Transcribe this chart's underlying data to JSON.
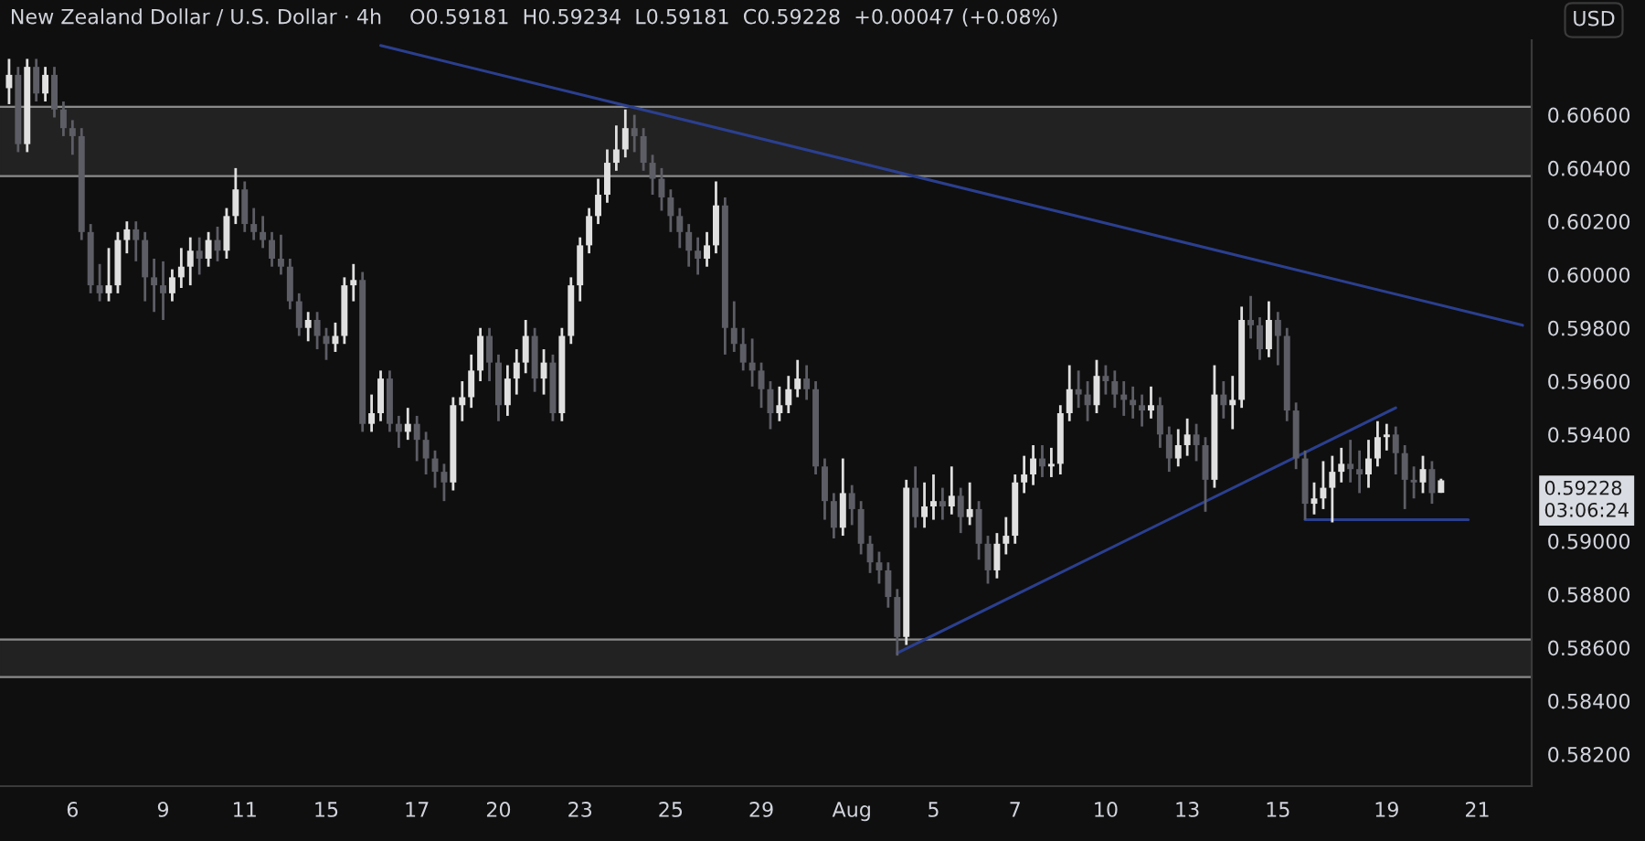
{
  "chart_data": {
    "type": "candlestick",
    "title": "New Zealand Dollar / U.S. Dollar · 4h",
    "subtitle": "O0.59181  H0.59234  L0.59181  C0.59228  +0.00047 (+0.08%)",
    "ylabel": "USD",
    "categories": [
      null,
      null,
      null,
      null,
      null,
      null,
      null,
      "6",
      null,
      null,
      null,
      null,
      null,
      null,
      null,
      null,
      null,
      "9",
      null,
      null,
      null,
      null,
      null,
      null,
      null,
      null,
      "11",
      null,
      null,
      null,
      null,
      null,
      null,
      null,
      null,
      "15",
      null,
      null,
      null,
      null,
      null,
      null,
      null,
      null,
      null,
      "17",
      null,
      null,
      null,
      null,
      null,
      null,
      null,
      null,
      "20",
      null,
      null,
      null,
      null,
      null,
      null,
      null,
      null,
      "23",
      null,
      null,
      null,
      null,
      null,
      null,
      null,
      null,
      null,
      "25",
      null,
      null,
      null,
      null,
      null,
      null,
      null,
      null,
      null,
      "29",
      null,
      null,
      null,
      null,
      null,
      null,
      null,
      null,
      null,
      "Aug",
      null,
      null,
      null,
      null,
      null,
      null,
      null,
      null,
      "5",
      null,
      null,
      null,
      null,
      null,
      null,
      null,
      null,
      "7",
      null,
      null,
      null,
      null,
      null,
      null,
      null,
      null,
      null,
      "10",
      null,
      null,
      null,
      null,
      null,
      null,
      null,
      null,
      "13",
      null,
      null,
      null,
      null,
      null,
      null,
      null,
      null,
      null,
      "15",
      null,
      null,
      null,
      null,
      null,
      null,
      null,
      null,
      null,
      null,
      null,
      "19",
      null,
      null,
      null,
      null,
      null,
      null,
      null,
      null,
      null,
      "21",
      null,
      null,
      null,
      null,
      null
    ],
    "ohlc": [
      [
        0.607,
        0.6081,
        0.6064,
        0.6075
      ],
      [
        0.6075,
        0.6078,
        0.6046,
        0.6049
      ],
      [
        0.6049,
        0.6081,
        0.6046,
        0.6078
      ],
      [
        0.6078,
        0.6081,
        0.6065,
        0.6068
      ],
      [
        0.6068,
        0.6078,
        0.6065,
        0.6075
      ],
      [
        0.6075,
        0.6078,
        0.6059,
        0.6062
      ],
      [
        0.6062,
        0.6065,
        0.6052,
        0.6055
      ],
      [
        0.6055,
        0.6058,
        0.6045,
        0.6052
      ],
      [
        0.6052,
        0.6055,
        0.6013,
        0.6016
      ],
      [
        0.6016,
        0.6019,
        0.5993,
        0.5996
      ],
      [
        0.5996,
        0.6004,
        0.599,
        0.5993
      ],
      [
        0.5993,
        0.601,
        0.599,
        0.5996
      ],
      [
        0.5996,
        0.6016,
        0.5993,
        0.6013
      ],
      [
        0.6013,
        0.602,
        0.6008,
        0.6017
      ],
      [
        0.6017,
        0.602,
        0.6005,
        0.6013
      ],
      [
        0.6013,
        0.6016,
        0.599,
        0.5999
      ],
      [
        0.5999,
        0.6006,
        0.5986,
        0.5996
      ],
      [
        0.5996,
        0.6005,
        0.5983,
        0.5993
      ],
      [
        0.5993,
        0.6002,
        0.599,
        0.5999
      ],
      [
        0.5999,
        0.601,
        0.5995,
        0.6003
      ],
      [
        0.6003,
        0.6014,
        0.5996,
        0.6009
      ],
      [
        0.6009,
        0.6014,
        0.6,
        0.6006
      ],
      [
        0.6006,
        0.6016,
        0.6003,
        0.6013
      ],
      [
        0.6013,
        0.6018,
        0.6005,
        0.6009
      ],
      [
        0.6009,
        0.6025,
        0.6006,
        0.6022
      ],
      [
        0.6022,
        0.604,
        0.6019,
        0.6032
      ],
      [
        0.6032,
        0.6035,
        0.6016,
        0.6019
      ],
      [
        0.6019,
        0.6025,
        0.6013,
        0.6016
      ],
      [
        0.6016,
        0.6022,
        0.601,
        0.6013
      ],
      [
        0.6013,
        0.6016,
        0.6003,
        0.6006
      ],
      [
        0.6006,
        0.6015,
        0.6,
        0.6003
      ],
      [
        0.6003,
        0.6006,
        0.5987,
        0.599
      ],
      [
        0.599,
        0.5993,
        0.5977,
        0.598
      ],
      [
        0.598,
        0.5986,
        0.5975,
        0.5983
      ],
      [
        0.5983,
        0.5986,
        0.5972,
        0.5977
      ],
      [
        0.5977,
        0.598,
        0.5968,
        0.5974
      ],
      [
        0.5974,
        0.5982,
        0.5971,
        0.5977
      ],
      [
        0.5977,
        0.5999,
        0.5974,
        0.5996
      ],
      [
        0.5996,
        0.6004,
        0.599,
        0.5998
      ],
      [
        0.5998,
        0.6001,
        0.5941,
        0.5944
      ],
      [
        0.5944,
        0.5955,
        0.5941,
        0.5948
      ],
      [
        0.5948,
        0.5964,
        0.5945,
        0.5961
      ],
      [
        0.5961,
        0.5964,
        0.5941,
        0.5944
      ],
      [
        0.5944,
        0.5947,
        0.5935,
        0.5941
      ],
      [
        0.5941,
        0.595,
        0.5938,
        0.5944
      ],
      [
        0.5944,
        0.5947,
        0.593,
        0.5938
      ],
      [
        0.5938,
        0.5941,
        0.5925,
        0.5931
      ],
      [
        0.5931,
        0.5934,
        0.592,
        0.5926
      ],
      [
        0.5926,
        0.5929,
        0.5915,
        0.5922
      ],
      [
        0.5922,
        0.5954,
        0.5919,
        0.5951
      ],
      [
        0.5951,
        0.596,
        0.5945,
        0.5954
      ],
      [
        0.5954,
        0.597,
        0.595,
        0.5964
      ],
      [
        0.5964,
        0.598,
        0.596,
        0.5977
      ],
      [
        0.5977,
        0.598,
        0.596,
        0.5967
      ],
      [
        0.5967,
        0.597,
        0.5945,
        0.5951
      ],
      [
        0.5951,
        0.5966,
        0.5947,
        0.5961
      ],
      [
        0.5961,
        0.5972,
        0.5955,
        0.5967
      ],
      [
        0.5967,
        0.5983,
        0.5963,
        0.5977
      ],
      [
        0.5977,
        0.598,
        0.5956,
        0.5961
      ],
      [
        0.5961,
        0.5972,
        0.5955,
        0.5967
      ],
      [
        0.5967,
        0.597,
        0.5945,
        0.5948
      ],
      [
        0.5948,
        0.598,
        0.5945,
        0.5977
      ],
      [
        0.5977,
        0.5999,
        0.5974,
        0.5996
      ],
      [
        0.5996,
        0.6014,
        0.599,
        0.6011
      ],
      [
        0.6011,
        0.6025,
        0.6008,
        0.6022
      ],
      [
        0.6022,
        0.6036,
        0.6019,
        0.603
      ],
      [
        0.603,
        0.6047,
        0.6027,
        0.6042
      ],
      [
        0.6042,
        0.6056,
        0.6039,
        0.6047
      ],
      [
        0.6047,
        0.6062,
        0.6044,
        0.6055
      ],
      [
        0.6055,
        0.606,
        0.6046,
        0.6052
      ],
      [
        0.6052,
        0.6055,
        0.6039,
        0.6042
      ],
      [
        0.6042,
        0.6045,
        0.603,
        0.6036
      ],
      [
        0.6036,
        0.604,
        0.6024,
        0.6029
      ],
      [
        0.6029,
        0.6032,
        0.6016,
        0.6022
      ],
      [
        0.6022,
        0.6025,
        0.601,
        0.6016
      ],
      [
        0.6016,
        0.6019,
        0.6003,
        0.6009
      ],
      [
        0.6009,
        0.6014,
        0.6,
        0.6006
      ],
      [
        0.6006,
        0.6016,
        0.6003,
        0.6011
      ],
      [
        0.6011,
        0.6035,
        0.6008,
        0.6026
      ],
      [
        0.6026,
        0.6029,
        0.597,
        0.598
      ],
      [
        0.598,
        0.599,
        0.5971,
        0.5974
      ],
      [
        0.5974,
        0.598,
        0.5964,
        0.5967
      ],
      [
        0.5967,
        0.5976,
        0.5958,
        0.5964
      ],
      [
        0.5964,
        0.5967,
        0.595,
        0.5957
      ],
      [
        0.5957,
        0.596,
        0.5942,
        0.5948
      ],
      [
        0.5948,
        0.5958,
        0.5945,
        0.5951
      ],
      [
        0.5951,
        0.5962,
        0.5948,
        0.5957
      ],
      [
        0.5957,
        0.5968,
        0.5954,
        0.5961
      ],
      [
        0.5961,
        0.5966,
        0.5953,
        0.5957
      ],
      [
        0.5957,
        0.596,
        0.5925,
        0.5928
      ],
      [
        0.5928,
        0.5931,
        0.5908,
        0.5915
      ],
      [
        0.5915,
        0.5918,
        0.5901,
        0.5905
      ],
      [
        0.5905,
        0.5931,
        0.5902,
        0.5918
      ],
      [
        0.5918,
        0.5921,
        0.5906,
        0.5912
      ],
      [
        0.5912,
        0.5915,
        0.5895,
        0.5899
      ],
      [
        0.5899,
        0.5902,
        0.5888,
        0.5892
      ],
      [
        0.5892,
        0.5896,
        0.5884,
        0.5889
      ],
      [
        0.5889,
        0.5892,
        0.5875,
        0.5879
      ],
      [
        0.5879,
        0.5882,
        0.5857,
        0.5864
      ],
      [
        0.5864,
        0.5923,
        0.5861,
        0.592
      ],
      [
        0.592,
        0.5928,
        0.5905,
        0.5909
      ],
      [
        0.5909,
        0.5922,
        0.5905,
        0.5913
      ],
      [
        0.5913,
        0.5925,
        0.5908,
        0.5915
      ],
      [
        0.5915,
        0.592,
        0.5908,
        0.5913
      ],
      [
        0.5913,
        0.5928,
        0.591,
        0.5917
      ],
      [
        0.5917,
        0.592,
        0.5903,
        0.5909
      ],
      [
        0.5909,
        0.5922,
        0.5906,
        0.5912
      ],
      [
        0.5912,
        0.5915,
        0.5893,
        0.5899
      ],
      [
        0.5899,
        0.5902,
        0.5884,
        0.5889
      ],
      [
        0.5889,
        0.5903,
        0.5886,
        0.5899
      ],
      [
        0.5899,
        0.5909,
        0.5895,
        0.5902
      ],
      [
        0.5902,
        0.5925,
        0.5899,
        0.5922
      ],
      [
        0.5922,
        0.5932,
        0.5918,
        0.5925
      ],
      [
        0.5925,
        0.5936,
        0.5921,
        0.5931
      ],
      [
        0.5931,
        0.5936,
        0.5924,
        0.5928
      ],
      [
        0.5928,
        0.5935,
        0.5924,
        0.5929
      ],
      [
        0.5929,
        0.5951,
        0.5925,
        0.5948
      ],
      [
        0.5948,
        0.5966,
        0.5945,
        0.5957
      ],
      [
        0.5957,
        0.5964,
        0.595,
        0.5955
      ],
      [
        0.5955,
        0.596,
        0.5945,
        0.5951
      ],
      [
        0.5951,
        0.5968,
        0.5948,
        0.5962
      ],
      [
        0.5962,
        0.5966,
        0.5955,
        0.596
      ],
      [
        0.596,
        0.5964,
        0.595,
        0.5955
      ],
      [
        0.5955,
        0.596,
        0.5947,
        0.5953
      ],
      [
        0.5953,
        0.5958,
        0.5946,
        0.5951
      ],
      [
        0.5951,
        0.5955,
        0.5943,
        0.5949
      ],
      [
        0.5949,
        0.5958,
        0.5946,
        0.5951
      ],
      [
        0.5951,
        0.5954,
        0.5935,
        0.594
      ],
      [
        0.594,
        0.5943,
        0.5926,
        0.5931
      ],
      [
        0.5931,
        0.5942,
        0.5928,
        0.5936
      ],
      [
        0.5936,
        0.5946,
        0.5932,
        0.594
      ],
      [
        0.594,
        0.5944,
        0.593,
        0.5936
      ],
      [
        0.5936,
        0.5939,
        0.5911,
        0.5923
      ],
      [
        0.5923,
        0.5966,
        0.592,
        0.5955
      ],
      [
        0.5955,
        0.596,
        0.5946,
        0.5951
      ],
      [
        0.5951,
        0.5962,
        0.5942,
        0.5953
      ],
      [
        0.5953,
        0.5988,
        0.595,
        0.5983
      ],
      [
        0.5983,
        0.5992,
        0.5976,
        0.5981
      ],
      [
        0.5981,
        0.5984,
        0.5968,
        0.5972
      ],
      [
        0.5972,
        0.599,
        0.5969,
        0.5983
      ],
      [
        0.5983,
        0.5986,
        0.5966,
        0.5977
      ],
      [
        0.5977,
        0.598,
        0.5945,
        0.5949
      ],
      [
        0.5949,
        0.5952,
        0.5927,
        0.5931
      ],
      [
        0.5931,
        0.5934,
        0.5908,
        0.5914
      ],
      [
        0.5914,
        0.5922,
        0.591,
        0.5916
      ],
      [
        0.5916,
        0.593,
        0.5912,
        0.592
      ],
      [
        0.592,
        0.5932,
        0.5907,
        0.5926
      ],
      [
        0.5926,
        0.5935,
        0.5922,
        0.5929
      ],
      [
        0.5929,
        0.5938,
        0.5922,
        0.5927
      ],
      [
        0.5927,
        0.5934,
        0.5918,
        0.5925
      ],
      [
        0.5925,
        0.5938,
        0.592,
        0.5931
      ],
      [
        0.5931,
        0.5945,
        0.5928,
        0.5939
      ],
      [
        0.5939,
        0.5944,
        0.5934,
        0.594
      ],
      [
        0.594,
        0.5943,
        0.5925,
        0.5933
      ],
      [
        0.5933,
        0.5936,
        0.5912,
        0.5923
      ],
      [
        0.5923,
        0.5928,
        0.5916,
        0.5922
      ],
      [
        0.5922,
        0.5932,
        0.5918,
        0.5927
      ],
      [
        0.5927,
        0.593,
        0.5914,
        0.5918
      ],
      [
        0.59181,
        0.59234,
        0.59181,
        0.59228
      ],
      null,
      null,
      null,
      null,
      null,
      null,
      null,
      null,
      null
    ],
    "colors": [
      "#e0e0e0",
      "#5d5d66",
      "#e0e0e0",
      "#5d5d66",
      "#e0e0e0",
      "#5d5d66",
      "#5d5d66",
      "#5d5d66",
      "#5d5d66",
      "#5d5d66",
      "#5d5d66",
      "#e0e0e0",
      "#e0e0e0",
      "#e0e0e0",
      "#5d5d66",
      "#5d5d66",
      "#5d5d66",
      "#5d5d66",
      "#e0e0e0",
      "#e0e0e0",
      "#e0e0e0",
      "#5d5d66",
      "#e0e0e0",
      "#5d5d66",
      "#e0e0e0",
      "#e0e0e0",
      "#5d5d66",
      "#5d5d66",
      "#5d5d66",
      "#5d5d66",
      "#5d5d66",
      "#5d5d66",
      "#5d5d66",
      "#e0e0e0",
      "#5d5d66",
      "#5d5d66",
      "#e0e0e0",
      "#e0e0e0",
      "#e0e0e0",
      "#5d5d66",
      "#e0e0e0",
      "#e0e0e0",
      "#5d5d66",
      "#5d5d66",
      "#e0e0e0",
      "#5d5d66",
      "#5d5d66",
      "#5d5d66",
      "#5d5d66",
      "#e0e0e0",
      "#e0e0e0",
      "#e0e0e0",
      "#e0e0e0",
      "#5d5d66",
      "#5d5d66",
      "#e0e0e0",
      "#e0e0e0",
      "#e0e0e0",
      "#5d5d66",
      "#e0e0e0",
      "#5d5d66",
      "#e0e0e0",
      "#e0e0e0",
      "#e0e0e0",
      "#e0e0e0",
      "#e0e0e0",
      "#e0e0e0",
      "#e0e0e0",
      "#e0e0e0",
      "#5d5d66",
      "#5d5d66",
      "#5d5d66",
      "#5d5d66",
      "#5d5d66",
      "#5d5d66",
      "#5d5d66",
      "#5d5d66",
      "#e0e0e0",
      "#e0e0e0",
      "#5d5d66",
      "#5d5d66",
      "#5d5d66",
      "#5d5d66",
      "#5d5d66",
      "#5d5d66",
      "#e0e0e0",
      "#e0e0e0",
      "#e0e0e0",
      "#5d5d66",
      "#5d5d66",
      "#5d5d66",
      "#5d5d66",
      "#e0e0e0",
      "#5d5d66",
      "#5d5d66",
      "#5d5d66",
      "#5d5d66",
      "#5d5d66",
      "#5d5d66",
      "#e0e0e0",
      "#5d5d66",
      "#e0e0e0",
      "#e0e0e0",
      "#5d5d66",
      "#e0e0e0",
      "#5d5d66",
      "#e0e0e0",
      "#5d5d66",
      "#5d5d66",
      "#e0e0e0",
      "#e0e0e0",
      "#e0e0e0",
      "#e0e0e0",
      "#e0e0e0",
      "#5d5d66",
      "#e0e0e0",
      "#e0e0e0",
      "#e0e0e0",
      "#5d5d66",
      "#5d5d66",
      "#e0e0e0",
      "#5d5d66",
      "#5d5d66",
      "#5d5d66",
      "#5d5d66",
      "#5d5d66",
      "#e0e0e0",
      "#5d5d66",
      "#5d5d66",
      "#e0e0e0",
      "#e0e0e0",
      "#5d5d66",
      "#5d5d66",
      "#e0e0e0",
      "#5d5d66",
      "#e0e0e0",
      "#e0e0e0",
      "#5d5d66",
      "#5d5d66",
      "#e0e0e0",
      "#5d5d66",
      "#5d5d66",
      "#5d5d66",
      "#5d5d66",
      "#e0e0e0",
      "#e0e0e0",
      "#e0e0e0",
      "#e0e0e0",
      "#5d5d66",
      "#5d5d66",
      "#e0e0e0",
      "#e0e0e0",
      "#e0e0e0",
      "#5d5d66",
      "#5d5d66",
      "#5d5d66",
      "#e0e0e0",
      "#5d5d66",
      "#e0e0e0",
      null,
      null,
      null,
      null,
      null,
      null,
      null,
      null,
      null
    ],
    "series": [
      {
        "type": "line",
        "color": "#2b3f8f",
        "values": [
          null,
          null,
          null,
          null,
          null,
          null,
          null,
          null,
          null,
          null,
          null,
          null,
          null,
          null,
          null,
          null,
          null,
          null,
          null,
          null,
          null,
          null,
          null,
          null,
          null,
          null,
          null,
          null,
          null,
          null,
          null,
          null,
          null,
          null,
          null,
          null,
          null,
          null,
          null,
          null,
          null,
          0.6086,
          null,
          null,
          null,
          null,
          null,
          null,
          null,
          null,
          null,
          null,
          null,
          null,
          null,
          null,
          null,
          null,
          null,
          null,
          null,
          null,
          null,
          null,
          null,
          null,
          null,
          null,
          null,
          null,
          null,
          null,
          null,
          null,
          null,
          null,
          null,
          null,
          null,
          null,
          null,
          null,
          null,
          null,
          null,
          null,
          null,
          null,
          null,
          null,
          null,
          null,
          null,
          null,
          null,
          null,
          null,
          null,
          null,
          null,
          null,
          null,
          null,
          null,
          null,
          null,
          null,
          null,
          null,
          null,
          null,
          null,
          null,
          null,
          null,
          null,
          null,
          null,
          null,
          null,
          null,
          null,
          null,
          null,
          null,
          null,
          null,
          null,
          null,
          null,
          null,
          null,
          null,
          null,
          null,
          null,
          null,
          null,
          null,
          null,
          null,
          null,
          null,
          null,
          null,
          null,
          null,
          null,
          null,
          null,
          null,
          null,
          null,
          null,
          null,
          null,
          null,
          null,
          null,
          null,
          null,
          null,
          null,
          null,
          null,
          null,
          null,
          0.5981
        ]
      },
      {
        "type": "line",
        "color": "#2b3f8f",
        "values": [
          null,
          null,
          null,
          null,
          null,
          null,
          null,
          null,
          null,
          null,
          null,
          null,
          null,
          null,
          null,
          null,
          null,
          null,
          null,
          null,
          null,
          null,
          null,
          null,
          null,
          null,
          null,
          null,
          null,
          null,
          null,
          null,
          null,
          null,
          null,
          null,
          null,
          null,
          null,
          null,
          null,
          null,
          null,
          null,
          null,
          null,
          null,
          null,
          null,
          null,
          null,
          null,
          null,
          null,
          null,
          null,
          null,
          null,
          null,
          null,
          null,
          null,
          null,
          null,
          null,
          null,
          null,
          null,
          null,
          null,
          null,
          null,
          null,
          null,
          null,
          null,
          null,
          null,
          null,
          null,
          null,
          null,
          null,
          null,
          null,
          null,
          null,
          null,
          null,
          null,
          null,
          null,
          null,
          null,
          null,
          null,
          null,
          null,
          0.5858,
          null,
          null,
          null,
          null,
          null,
          null,
          null,
          null,
          null,
          null,
          null,
          null,
          null,
          null,
          null,
          null,
          null,
          null,
          null,
          null,
          null,
          null,
          null,
          null,
          null,
          null,
          null,
          null,
          null,
          null,
          null,
          null,
          null,
          null,
          null,
          null,
          null,
          null,
          null,
          null,
          null,
          null,
          null,
          null,
          null,
          null,
          null,
          null,
          null,
          null,
          null,
          null,
          null,
          null,
          0.595,
          null,
          null,
          null,
          null,
          null,
          null,
          null,
          null,
          null,
          null,
          null,
          null,
          null,
          null
        ]
      },
      {
        "type": "line",
        "color": "#2b3f8f",
        "values": [
          null,
          null,
          null,
          null,
          null,
          null,
          null,
          null,
          null,
          null,
          null,
          null,
          null,
          null,
          null,
          null,
          null,
          null,
          null,
          null,
          null,
          null,
          null,
          null,
          null,
          null,
          null,
          null,
          null,
          null,
          null,
          null,
          null,
          null,
          null,
          null,
          null,
          null,
          null,
          null,
          null,
          null,
          null,
          null,
          null,
          null,
          null,
          null,
          null,
          null,
          null,
          null,
          null,
          null,
          null,
          null,
          null,
          null,
          null,
          null,
          null,
          null,
          null,
          null,
          null,
          null,
          null,
          null,
          null,
          null,
          null,
          null,
          null,
          null,
          null,
          null,
          null,
          null,
          null,
          null,
          null,
          null,
          null,
          null,
          null,
          null,
          null,
          null,
          null,
          null,
          null,
          null,
          null,
          null,
          null,
          null,
          null,
          null,
          null,
          null,
          null,
          null,
          null,
          null,
          null,
          null,
          null,
          null,
          null,
          null,
          null,
          null,
          null,
          null,
          null,
          null,
          null,
          null,
          null,
          null,
          null,
          null,
          null,
          null,
          null,
          null,
          null,
          null,
          null,
          null,
          null,
          null,
          null,
          null,
          null,
          null,
          null,
          null,
          null,
          null,
          null,
          null,
          null,
          0.5908,
          null,
          null,
          null,
          null,
          null,
          null,
          null,
          null,
          null,
          null,
          null,
          null,
          null,
          null,
          null,
          null,
          null,
          0.5908,
          null,
          null,
          null,
          null,
          null,
          null
        ]
      }
    ],
    "bands": [
      {
        "axis": "y",
        "from": 0.6037,
        "to": 0.6063,
        "color": "#222222"
      },
      {
        "axis": "y",
        "from": 0.5849,
        "to": 0.5863,
        "color": "#222222"
      }
    ],
    "ylim": [
      0.5808,
      0.6088
    ],
    "yticks": [
      {
        "value": 0.582,
        "label": "0.58200"
      },
      {
        "value": 0.584,
        "label": "0.58400"
      },
      {
        "value": 0.586,
        "label": "0.58600"
      },
      {
        "value": 0.588,
        "label": "0.58800"
      },
      {
        "value": 0.59,
        "label": "0.59000"
      },
      {
        "value": 0.594,
        "label": "0.59400"
      },
      {
        "value": 0.596,
        "label": "0.59600"
      },
      {
        "value": 0.598,
        "label": "0.59800"
      },
      {
        "value": 0.6,
        "label": "0.60000"
      },
      {
        "value": 0.602,
        "label": "0.60200"
      },
      {
        "value": 0.604,
        "label": "0.60400"
      },
      {
        "value": 0.606,
        "label": "0.60600"
      }
    ],
    "annotations": [
      "0.59228",
      "03:06:24"
    ],
    "grid": false,
    "legend": false
  }
}
